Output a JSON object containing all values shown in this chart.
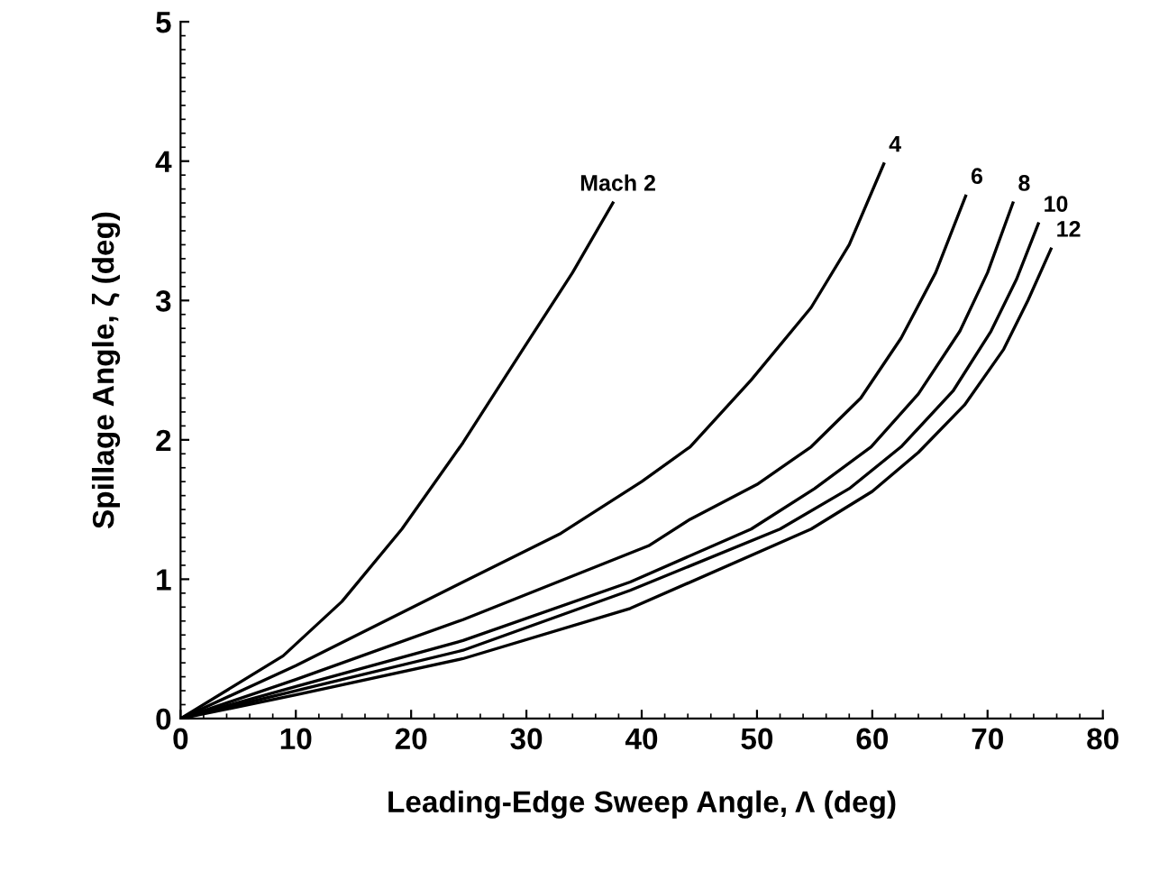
{
  "chart_data": {
    "type": "line",
    "xlabel": "Leading-Edge Sweep Angle, Λ (deg)",
    "ylabel": "Spillage Angle, ζ (deg)",
    "xlim": [
      0,
      80
    ],
    "ylim": [
      0,
      5
    ],
    "xticks": [
      0,
      10,
      20,
      30,
      40,
      50,
      60,
      70,
      80
    ],
    "yticks": [
      0,
      1,
      2,
      3,
      4,
      5
    ],
    "grid": false,
    "legend": false,
    "marker": "none",
    "line_style": "solid",
    "series": [
      {
        "name": "Mach 2",
        "color": "#000000",
        "x": [
          0,
          8.9,
          14,
          19.2,
          24.5,
          29.7,
          34,
          37.5
        ],
        "values": [
          0,
          0.45,
          0.84,
          1.36,
          1.98,
          2.65,
          3.2,
          3.7
        ]
      },
      {
        "name": "4",
        "color": "#000000",
        "x": [
          0,
          10,
          24.5,
          33,
          40,
          44.2,
          49.5,
          54.7,
          58,
          61
        ],
        "values": [
          0,
          0.38,
          0.98,
          1.33,
          1.7,
          1.95,
          2.43,
          2.95,
          3.4,
          3.98
        ]
      },
      {
        "name": "6",
        "color": "#000000",
        "x": [
          0,
          10,
          24.5,
          40.6,
          44.2,
          50,
          54.7,
          59,
          62.5,
          65.5,
          68.1
        ],
        "values": [
          0,
          0.28,
          0.71,
          1.24,
          1.43,
          1.68,
          1.95,
          2.3,
          2.73,
          3.2,
          3.75
        ]
      },
      {
        "name": "8",
        "color": "#000000",
        "x": [
          0,
          10,
          24.5,
          39,
          49.5,
          55,
          59.9,
          64,
          67.6,
          70,
          72.2
        ],
        "values": [
          0,
          0.23,
          0.56,
          0.98,
          1.36,
          1.65,
          1.95,
          2.33,
          2.78,
          3.2,
          3.7
        ]
      },
      {
        "name": "10",
        "color": "#000000",
        "x": [
          0,
          10,
          24.5,
          39,
          52,
          58,
          62.5,
          67,
          70.3,
          72.5,
          74.4
        ],
        "values": [
          0,
          0.2,
          0.49,
          0.92,
          1.36,
          1.65,
          1.95,
          2.35,
          2.78,
          3.15,
          3.55
        ]
      },
      {
        "name": "12",
        "color": "#000000",
        "x": [
          0,
          10,
          24.5,
          39,
          54.7,
          60,
          64,
          68,
          71.4,
          73.5,
          75.5
        ],
        "values": [
          0,
          0.17,
          0.43,
          0.79,
          1.36,
          1.63,
          1.91,
          2.25,
          2.65,
          3.0,
          3.37
        ]
      }
    ]
  }
}
